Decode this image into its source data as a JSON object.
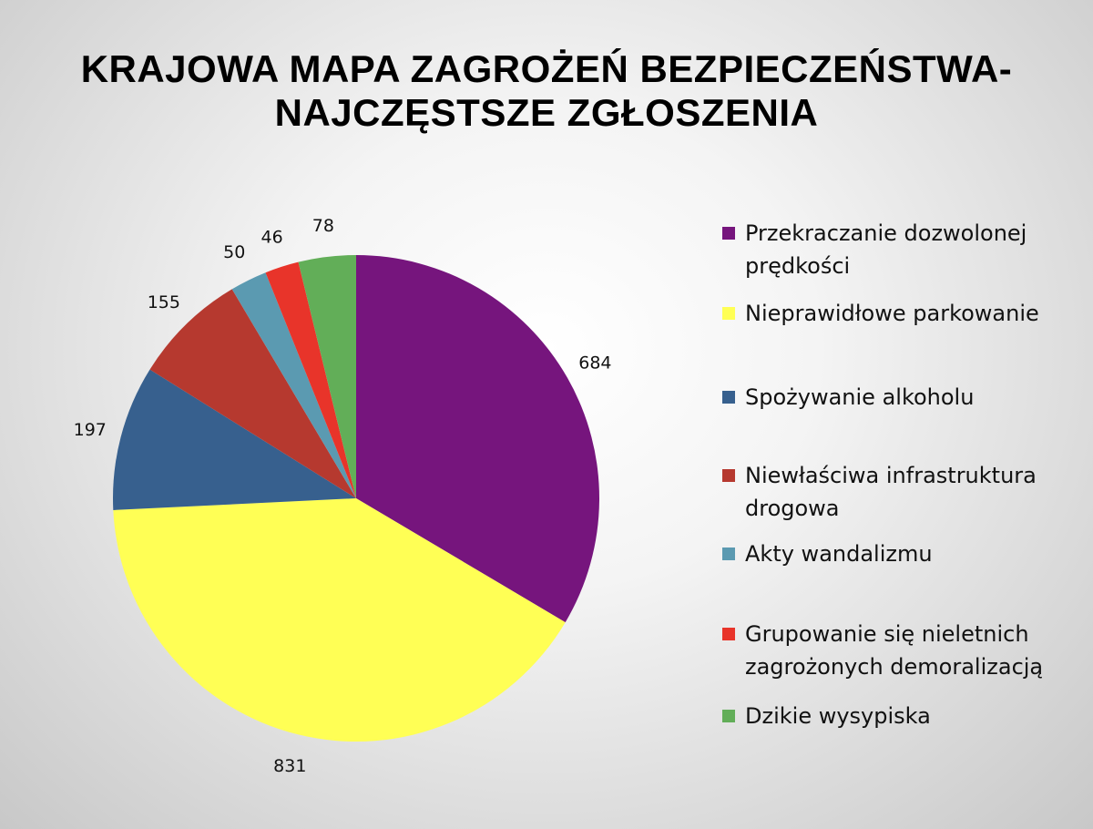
{
  "chart_data": {
    "type": "pie",
    "title_lines": [
      "KRAJOWA MAPA ZAGROŻEŃ BEZPIECZEŃSTWA-",
      "NAJCZĘSTSZE  ZGŁOSZENIA"
    ],
    "legend_position": "right",
    "slices": [
      {
        "label": "Przekraczanie dozwolonej prędkości",
        "value": 684,
        "color": "#76157D"
      },
      {
        "label": "Nieprawidłowe parkowanie",
        "value": 831,
        "color": "#FFFF55"
      },
      {
        "label": "Spożywanie alkoholu",
        "value": 197,
        "color": "#37608E"
      },
      {
        "label": "Niewłaściwa infrastruktura drogowa",
        "value": 155,
        "color": "#B6392F"
      },
      {
        "label": "Akty wandalizmu",
        "value": 50,
        "color": "#5B9AB1"
      },
      {
        "label": "Grupowanie się nieletnich zagrożonych demoralizacją",
        "value": 46,
        "color": "#E8342A"
      },
      {
        "label": "Dzikie wysypiska",
        "value": 78,
        "color": "#62AE58"
      }
    ]
  }
}
